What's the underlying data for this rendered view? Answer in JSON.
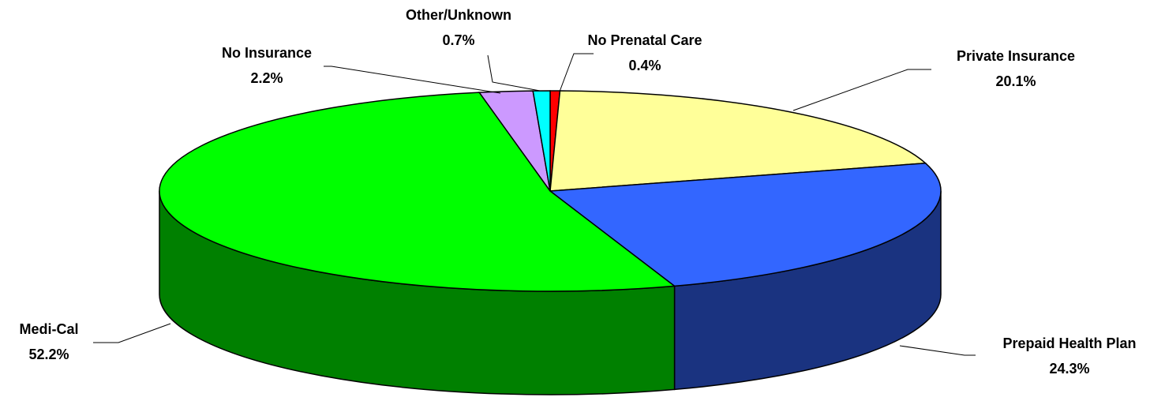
{
  "chart_data": {
    "type": "pie3d",
    "categories": [
      "No Prenatal Care",
      "Private Insurance",
      "Prepaid Health Plan",
      "Medi-Cal",
      "No Insurance",
      "Other/Unknown"
    ],
    "values": [
      0.4,
      20.1,
      24.3,
      52.2,
      2.2,
      0.7
    ],
    "value_labels": [
      "0.4%",
      "20.1%",
      "24.3%",
      "52.2%",
      "2.2%",
      "0.7%"
    ],
    "colors": [
      "#ff0000",
      "#ffff99",
      "#3366ff",
      "#00ff00",
      "#cc99ff",
      "#00ffff"
    ]
  }
}
